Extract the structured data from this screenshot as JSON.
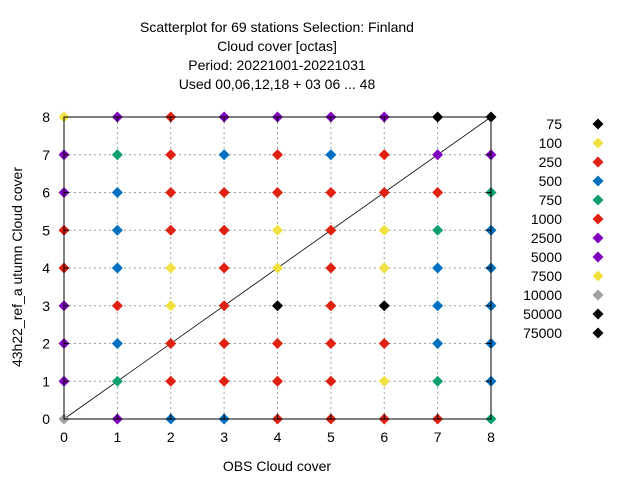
{
  "chart_data": {
    "type": "scatter",
    "title_lines": [
      "Scatterplot for   69 stations Selection: Finland",
      "Cloud cover [octas]",
      "Period: 20221001-20221031",
      "Used  00,06,12,18  + 03 06 ... 48"
    ],
    "xlabel": "OBS Cloud cover",
    "ylabel": "43h22_ref_a utumn Cloud cover",
    "xlim": [
      0,
      8
    ],
    "ylim": [
      0,
      8
    ],
    "xticks": [
      0,
      1,
      2,
      3,
      4,
      5,
      6,
      7,
      8
    ],
    "yticks": [
      0,
      1,
      2,
      3,
      4,
      5,
      6,
      7,
      8
    ],
    "grid": true,
    "diagonal_line": true,
    "legend_position": "right",
    "legend": [
      {
        "label": "75",
        "color": "#000000"
      },
      {
        "label": "100",
        "color": "#f0e040"
      },
      {
        "label": "250",
        "color": "#e02010"
      },
      {
        "label": "500",
        "color": "#0070c0"
      },
      {
        "label": "750",
        "color": "#10a070"
      },
      {
        "label": "1000",
        "color": "#e02010"
      },
      {
        "label": "2500",
        "color": "#8000c0"
      },
      {
        "label": "5000",
        "color": "#8000c0"
      },
      {
        "label": "7500",
        "color": "#f0e040"
      },
      {
        "label": "10000",
        "color": "#a0a0a0"
      },
      {
        "label": "50000",
        "color": "#000000"
      },
      {
        "label": "75000",
        "color": "#000000"
      }
    ],
    "points": [
      {
        "x": 0,
        "y": 8,
        "color": "#f0e040"
      },
      {
        "x": 1,
        "y": 8,
        "color": "#8000c0"
      },
      {
        "x": 2,
        "y": 8,
        "color": "#e02010"
      },
      {
        "x": 3,
        "y": 8,
        "color": "#8000c0"
      },
      {
        "x": 4,
        "y": 8,
        "color": "#8000c0"
      },
      {
        "x": 5,
        "y": 8,
        "color": "#8000c0"
      },
      {
        "x": 6,
        "y": 8,
        "color": "#8000c0"
      },
      {
        "x": 7,
        "y": 8,
        "color": "#000000"
      },
      {
        "x": 8,
        "y": 8,
        "color": "#000000"
      },
      {
        "x": 0,
        "y": 7,
        "color": "#8000c0"
      },
      {
        "x": 1,
        "y": 7,
        "color": "#10a070"
      },
      {
        "x": 2,
        "y": 7,
        "color": "#e02010"
      },
      {
        "x": 3,
        "y": 7,
        "color": "#0070c0"
      },
      {
        "x": 4,
        "y": 7,
        "color": "#e02010"
      },
      {
        "x": 5,
        "y": 7,
        "color": "#0070c0"
      },
      {
        "x": 6,
        "y": 7,
        "color": "#e02010"
      },
      {
        "x": 7,
        "y": 7,
        "color": "#8000c0"
      },
      {
        "x": 8,
        "y": 7,
        "color": "#8000c0"
      },
      {
        "x": 0,
        "y": 6,
        "color": "#8000c0"
      },
      {
        "x": 1,
        "y": 6,
        "color": "#0070c0"
      },
      {
        "x": 2,
        "y": 6,
        "color": "#e02010"
      },
      {
        "x": 3,
        "y": 6,
        "color": "#e02010"
      },
      {
        "x": 4,
        "y": 6,
        "color": "#e02010"
      },
      {
        "x": 5,
        "y": 6,
        "color": "#e02010"
      },
      {
        "x": 6,
        "y": 6,
        "color": "#e02010"
      },
      {
        "x": 7,
        "y": 6,
        "color": "#e02010"
      },
      {
        "x": 8,
        "y": 6,
        "color": "#10a070"
      },
      {
        "x": 0,
        "y": 5,
        "color": "#e02010"
      },
      {
        "x": 1,
        "y": 5,
        "color": "#0070c0"
      },
      {
        "x": 2,
        "y": 5,
        "color": "#e02010"
      },
      {
        "x": 3,
        "y": 5,
        "color": "#e02010"
      },
      {
        "x": 4,
        "y": 5,
        "color": "#f0e040"
      },
      {
        "x": 5,
        "y": 5,
        "color": "#e02010"
      },
      {
        "x": 6,
        "y": 5,
        "color": "#f0e040"
      },
      {
        "x": 7,
        "y": 5,
        "color": "#10a070"
      },
      {
        "x": 8,
        "y": 5,
        "color": "#0070c0"
      },
      {
        "x": 0,
        "y": 4,
        "color": "#e02010"
      },
      {
        "x": 1,
        "y": 4,
        "color": "#0070c0"
      },
      {
        "x": 2,
        "y": 4,
        "color": "#f0e040"
      },
      {
        "x": 3,
        "y": 4,
        "color": "#e02010"
      },
      {
        "x": 4,
        "y": 4,
        "color": "#f0e040"
      },
      {
        "x": 5,
        "y": 4,
        "color": "#e02010"
      },
      {
        "x": 6,
        "y": 4,
        "color": "#f0e040"
      },
      {
        "x": 7,
        "y": 4,
        "color": "#0070c0"
      },
      {
        "x": 8,
        "y": 4,
        "color": "#0070c0"
      },
      {
        "x": 0,
        "y": 3,
        "color": "#8000c0"
      },
      {
        "x": 1,
        "y": 3,
        "color": "#e02010"
      },
      {
        "x": 2,
        "y": 3,
        "color": "#f0e040"
      },
      {
        "x": 3,
        "y": 3,
        "color": "#e02010"
      },
      {
        "x": 4,
        "y": 3,
        "color": "#000000"
      },
      {
        "x": 5,
        "y": 3,
        "color": "#e02010"
      },
      {
        "x": 6,
        "y": 3,
        "color": "#000000"
      },
      {
        "x": 7,
        "y": 3,
        "color": "#0070c0"
      },
      {
        "x": 8,
        "y": 3,
        "color": "#0070c0"
      },
      {
        "x": 0,
        "y": 2,
        "color": "#8000c0"
      },
      {
        "x": 1,
        "y": 2,
        "color": "#0070c0"
      },
      {
        "x": 2,
        "y": 2,
        "color": "#e02010"
      },
      {
        "x": 3,
        "y": 2,
        "color": "#e02010"
      },
      {
        "x": 4,
        "y": 2,
        "color": "#e02010"
      },
      {
        "x": 5,
        "y": 2,
        "color": "#e02010"
      },
      {
        "x": 6,
        "y": 2,
        "color": "#e02010"
      },
      {
        "x": 7,
        "y": 2,
        "color": "#0070c0"
      },
      {
        "x": 8,
        "y": 2,
        "color": "#0070c0"
      },
      {
        "x": 0,
        "y": 1,
        "color": "#8000c0"
      },
      {
        "x": 1,
        "y": 1,
        "color": "#10a070"
      },
      {
        "x": 2,
        "y": 1,
        "color": "#e02010"
      },
      {
        "x": 3,
        "y": 1,
        "color": "#e02010"
      },
      {
        "x": 4,
        "y": 1,
        "color": "#e02010"
      },
      {
        "x": 5,
        "y": 1,
        "color": "#e02010"
      },
      {
        "x": 6,
        "y": 1,
        "color": "#f0e040"
      },
      {
        "x": 7,
        "y": 1,
        "color": "#10a070"
      },
      {
        "x": 8,
        "y": 1,
        "color": "#0070c0"
      },
      {
        "x": 0,
        "y": 0,
        "color": "#a0a0a0"
      },
      {
        "x": 1,
        "y": 0,
        "color": "#8000c0"
      },
      {
        "x": 2,
        "y": 0,
        "color": "#0070c0"
      },
      {
        "x": 3,
        "y": 0,
        "color": "#0070c0"
      },
      {
        "x": 4,
        "y": 0,
        "color": "#e02010"
      },
      {
        "x": 5,
        "y": 0,
        "color": "#e02010"
      },
      {
        "x": 6,
        "y": 0,
        "color": "#e02010"
      },
      {
        "x": 7,
        "y": 0,
        "color": "#e02010"
      },
      {
        "x": 8,
        "y": 0,
        "color": "#10a070"
      }
    ]
  }
}
